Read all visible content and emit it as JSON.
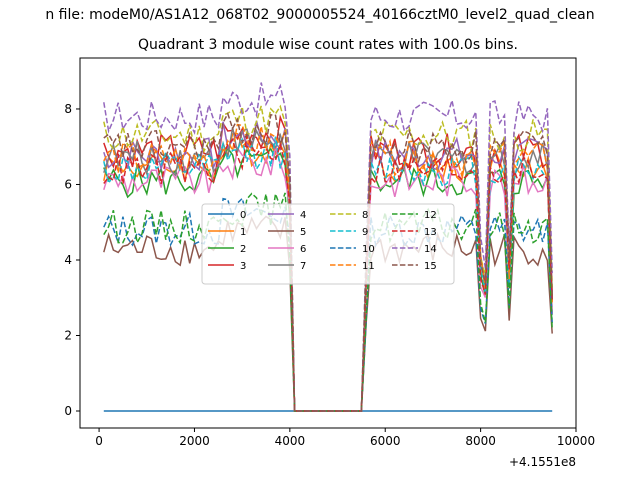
{
  "chart_data": {
    "type": "line",
    "suptitle": "n file: modeM0/AS1A12_068T02_9000005524_40166cztM0_level2_quad_clean",
    "title": "Quadrant 3 module wise count rates with 100.0s bins.",
    "xlabel": "",
    "ylabel": "",
    "x_offset_label": "+4.1551e8",
    "xlim": [
      -400,
      10000
    ],
    "ylim": [
      -0.45,
      9.35
    ],
    "xticks": [
      0,
      2000,
      4000,
      6000,
      8000,
      10000
    ],
    "xtick_labels": [
      "0",
      "2000",
      "4000",
      "6000",
      "8000",
      "10000"
    ],
    "yticks": [
      0,
      2,
      4,
      6,
      8
    ],
    "ytick_labels": [
      "0",
      "2",
      "4",
      "6",
      "8"
    ],
    "grid": false,
    "legend_position": "center",
    "legend_columns": 4,
    "x_start": 100,
    "x_step": 100,
    "gap_start": 4100,
    "gap_end": 5500,
    "series": [
      {
        "name": "0",
        "color": "#1f77b4",
        "dash": "solid",
        "flat": 0
      },
      {
        "name": "1",
        "color": "#ff7f0e",
        "dash": "solid",
        "base": 6.5
      },
      {
        "name": "2",
        "color": "#2ca02c",
        "dash": "solid",
        "base": 6.1
      },
      {
        "name": "3",
        "color": "#d62728",
        "dash": "solid",
        "base": 6.9
      },
      {
        "name": "4",
        "color": "#9467bd",
        "dash": "solid",
        "base": 6.8
      },
      {
        "name": "5",
        "color": "#8c564b",
        "dash": "solid",
        "base": 4.3
      },
      {
        "name": "6",
        "color": "#e377c2",
        "dash": "solid",
        "base": 6.1
      },
      {
        "name": "7",
        "color": "#7f7f7f",
        "dash": "solid",
        "base": 6.7
      },
      {
        "name": "8",
        "color": "#bcbd22",
        "dash": "dashed",
        "base": 7.3
      },
      {
        "name": "9",
        "color": "#17becf",
        "dash": "dashed",
        "base": 6.4
      },
      {
        "name": "10",
        "color": "#1f77b4",
        "dash": "dashed",
        "base": 4.8
      },
      {
        "name": "11",
        "color": "#ff7f0e",
        "dash": "dashed",
        "base": 6.7
      },
      {
        "name": "12",
        "color": "#2ca02c",
        "dash": "dashed",
        "base": 4.9
      },
      {
        "name": "13",
        "color": "#d62728",
        "dash": "dashed",
        "base": 6.4
      },
      {
        "name": "14",
        "color": "#9467bd",
        "dash": "dashed",
        "base": 7.8
      },
      {
        "name": "15",
        "color": "#8c564b",
        "dash": "dashed",
        "base": 7.0
      }
    ]
  }
}
